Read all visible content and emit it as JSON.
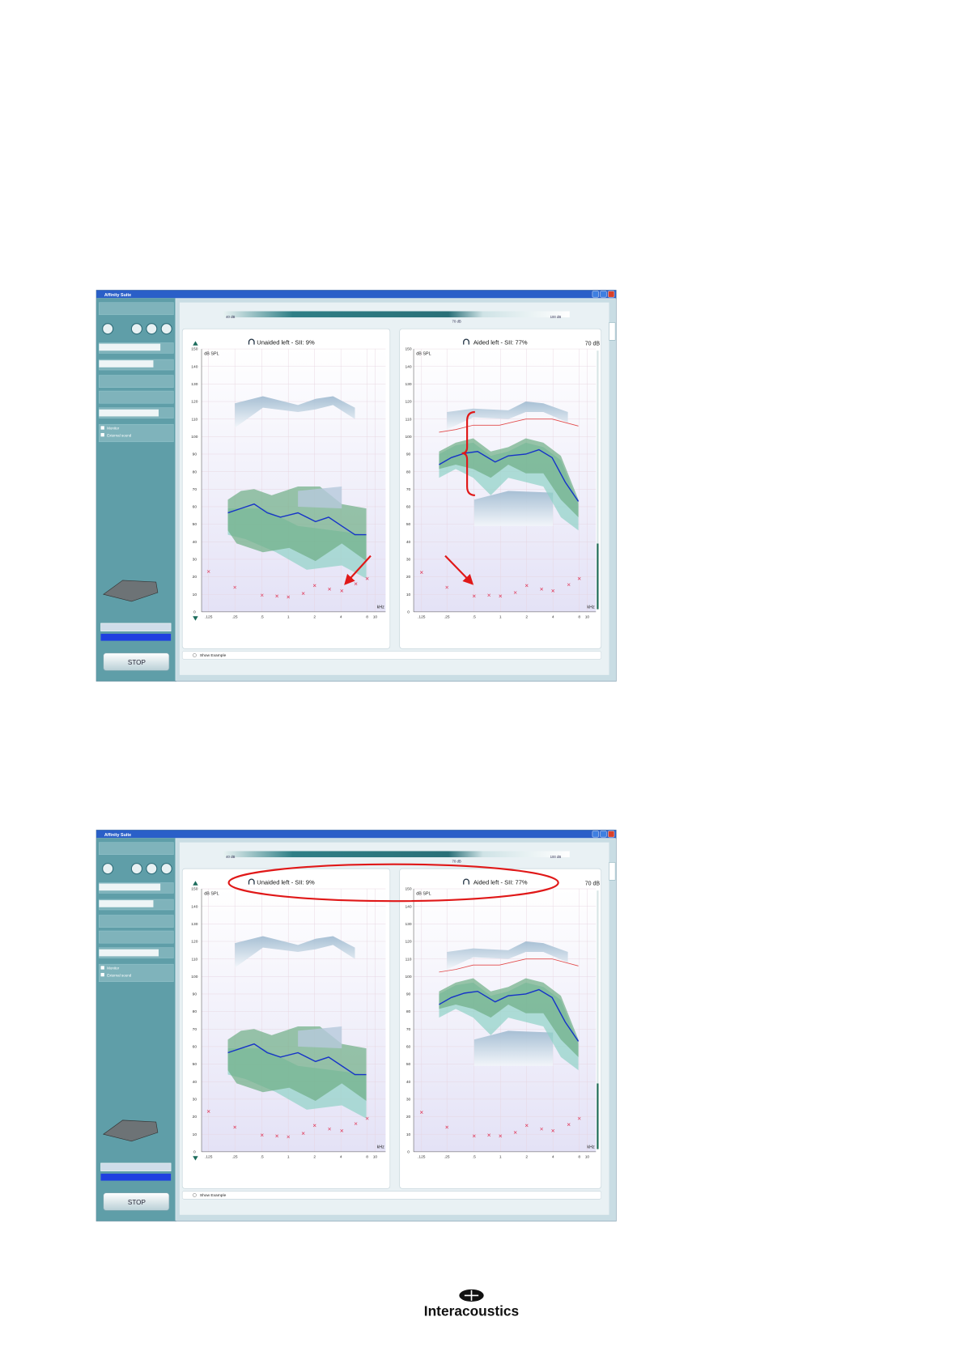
{
  "screenshots": [
    {
      "window_title": "Affinity Suite",
      "slider_labels": [
        "40 dB",
        "70 dB",
        "100 dB"
      ],
      "sidebar": {
        "checkboxes": [
          "Monitor",
          "External sound"
        ],
        "stop": "STOP"
      },
      "panels": [
        {
          "title": "Unaided left - SII: 9%",
          "unit": "dB SPL",
          "x_unit": "kHz",
          "yticks": [
            150,
            140,
            130,
            120,
            110,
            100,
            90,
            80,
            70,
            60,
            50,
            40,
            30,
            20,
            10,
            0
          ],
          "xticks": [
            ".125",
            ".25",
            ".5",
            "1",
            "2",
            "4",
            "8",
            "10"
          ]
        },
        {
          "title": "Aided left - SII: 77%",
          "unit": "dB SPL",
          "level": "70 dB",
          "x_unit": "kHz",
          "yticks": [
            150,
            140,
            130,
            120,
            110,
            100,
            90,
            80,
            70,
            60,
            50,
            40,
            30,
            20,
            10,
            0
          ],
          "xticks": [
            ".125",
            ".25",
            ".5",
            "1",
            "2",
            "4",
            "8",
            "10"
          ]
        }
      ],
      "show_example": "Show Example"
    },
    {
      "window_title": "Affinity Suite",
      "slider_labels": [
        "40 dB",
        "70 dB",
        "100 dB"
      ],
      "sidebar": {
        "checkboxes": [
          "Monitor",
          "External sound"
        ],
        "stop": "STOP"
      },
      "panels": [
        {
          "title": "Unaided left - SII: 9%",
          "unit": "dB SPL",
          "x_unit": "kHz",
          "yticks": [
            150,
            140,
            130,
            120,
            110,
            100,
            90,
            80,
            70,
            60,
            50,
            40,
            30,
            20,
            10,
            0
          ],
          "xticks": [
            ".125",
            ".25",
            ".5",
            "1",
            "2",
            "4",
            "8",
            "10"
          ]
        },
        {
          "title": "Aided left - SII: 77%",
          "unit": "dB SPL",
          "level": "70 dB",
          "x_unit": "kHz",
          "yticks": [
            150,
            140,
            130,
            120,
            110,
            100,
            90,
            80,
            70,
            60,
            50,
            40,
            30,
            20,
            10,
            0
          ],
          "xticks": [
            ".125",
            ".25",
            ".5",
            "1",
            "2",
            "4",
            "8",
            "10"
          ]
        }
      ],
      "show_example": "Show Example"
    }
  ],
  "footer": {
    "logo": "Interacoustics"
  }
}
